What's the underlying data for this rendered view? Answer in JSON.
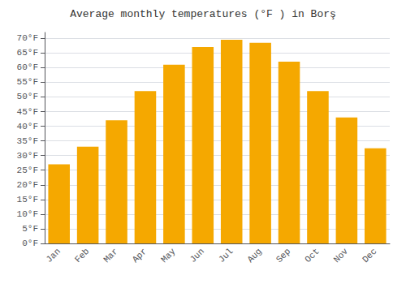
{
  "chart_data": {
    "type": "bar",
    "title": "Average monthly temperatures (°F ) in Borş",
    "categories": [
      "Jan",
      "Feb",
      "Mar",
      "Apr",
      "May",
      "Jun",
      "Jul",
      "Aug",
      "Sep",
      "Oct",
      "Nov",
      "Dec"
    ],
    "values": [
      27,
      33,
      42,
      52,
      61,
      67,
      69.5,
      68.5,
      62,
      52,
      43,
      32.5
    ],
    "color": "#F5A800",
    "ylim": [
      0,
      72
    ],
    "yticks": [
      {
        "value": 0,
        "label": "0°F"
      },
      {
        "value": 5,
        "label": "5°F"
      },
      {
        "value": 10,
        "label": "10°F"
      },
      {
        "value": 15,
        "label": "15°F"
      },
      {
        "value": 20,
        "label": "20°F"
      },
      {
        "value": 25,
        "label": "25°F"
      },
      {
        "value": 30,
        "label": "30°F"
      },
      {
        "value": 35,
        "label": "35°F"
      },
      {
        "value": 40,
        "label": "40°F"
      },
      {
        "value": 45,
        "label": "45°F"
      },
      {
        "value": 50,
        "label": "50°F"
      },
      {
        "value": 55,
        "label": "55°F"
      },
      {
        "value": 60,
        "label": "60°F"
      },
      {
        "value": 65,
        "label": "65°F"
      },
      {
        "value": 70,
        "label": "70°F"
      }
    ],
    "grid": true
  }
}
